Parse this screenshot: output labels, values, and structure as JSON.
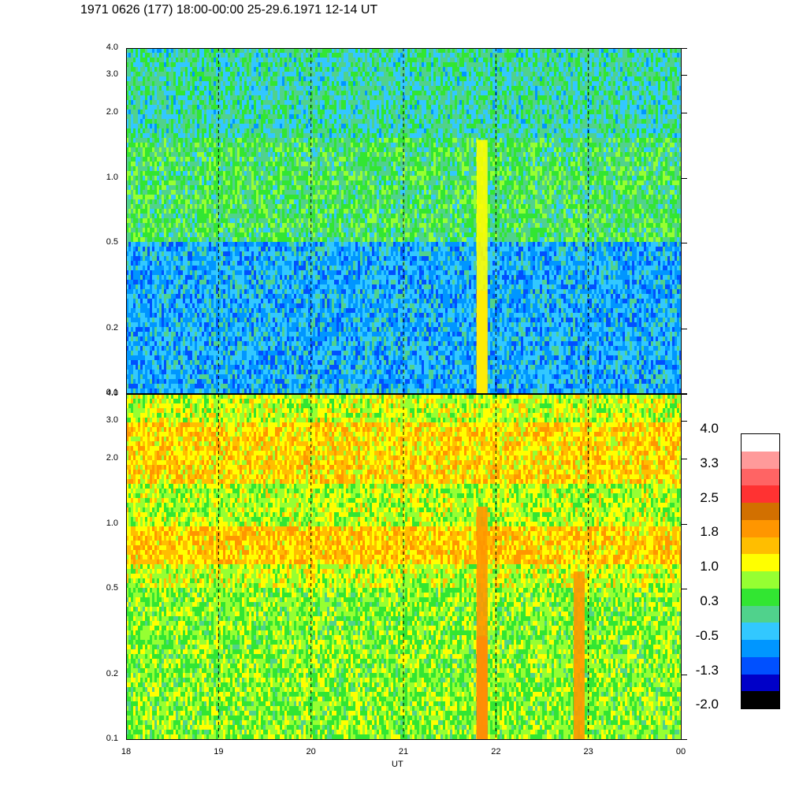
{
  "title": "1971 0626 (177) 18:00-00:00 25-29.6.1971  12-14 UT",
  "chart_data": [
    {
      "type": "heatmap",
      "panel": "upper",
      "x_ticks": [
        "18",
        "19",
        "20",
        "21",
        "22",
        "23",
        "00"
      ],
      "y_ticks": [
        "0.1",
        "0.2",
        "0.5",
        "1.0",
        "2.0",
        "3.0",
        "4.0"
      ],
      "y_tick_values": [
        0.1,
        0.2,
        0.5,
        1.0,
        2.0,
        3.0,
        4.0
      ],
      "ylim": [
        0.1,
        4.0
      ],
      "y_scale": "log",
      "xlim": [
        18,
        24
      ],
      "dashed_vertical_lines_at": [
        19,
        20,
        21,
        22,
        23
      ],
      "bands": [
        {
          "from": 0.1,
          "to": 0.2,
          "level": -0.5
        },
        {
          "from": 0.2,
          "to": 0.5,
          "level": -0.5
        },
        {
          "from": 0.5,
          "to": 0.8,
          "level": 0.3
        },
        {
          "from": 0.8,
          "to": 1.5,
          "level": 0.3
        },
        {
          "from": 1.5,
          "to": 4.0,
          "level": 0.0
        }
      ],
      "events": [
        {
          "x": 21.85,
          "ymax": 0.3,
          "level": 2.5
        },
        {
          "x": 21.85,
          "ymax": 1.5,
          "level": 1.2
        }
      ]
    },
    {
      "type": "heatmap",
      "panel": "lower",
      "x_ticks": [
        "18",
        "19",
        "20",
        "21",
        "22",
        "23",
        "00"
      ],
      "y_ticks": [
        "0.1",
        "0.2",
        "0.5",
        "1.0",
        "2.0",
        "3.0",
        "4.0"
      ],
      "y_tick_values": [
        0.1,
        0.2,
        0.5,
        1.0,
        2.0,
        3.0,
        4.0
      ],
      "ylim": [
        0.1,
        4.0
      ],
      "y_scale": "log",
      "xlim": [
        18,
        24
      ],
      "xlabel": "UT",
      "dashed_vertical_lines_at": [
        19,
        20,
        21,
        22,
        23
      ],
      "bands": [
        {
          "from": 0.1,
          "to": 0.5,
          "level": 0.7
        },
        {
          "from": 0.5,
          "to": 0.65,
          "level": 1.0
        },
        {
          "from": 0.65,
          "to": 0.95,
          "level": 1.5
        },
        {
          "from": 0.95,
          "to": 1.5,
          "level": 0.9
        },
        {
          "from": 1.5,
          "to": 3.0,
          "level": 1.4
        },
        {
          "from": 3.0,
          "to": 4.0,
          "level": 1.0
        }
      ],
      "events": [
        {
          "x": 21.85,
          "ymax": 0.3,
          "level": 2.5
        },
        {
          "x": 21.85,
          "ymax": 1.2,
          "level": 1.9
        },
        {
          "x": 22.9,
          "ymax": 0.6,
          "level": 1.8
        }
      ]
    }
  ],
  "colorbar": {
    "labels": [
      "4.0",
      "3.3",
      "2.5",
      "1.8",
      "1.0",
      "0.3",
      "-0.5",
      "-1.3",
      "-2.0"
    ],
    "colors": [
      "#ffffff",
      "#ff9a9a",
      "#ff6464",
      "#ff3232",
      "#d27000",
      "#ff9600",
      "#ffbe00",
      "#ffff00",
      "#96ff32",
      "#32e632",
      "#50d28c",
      "#32c8ff",
      "#0096ff",
      "#0050ff",
      "#0000c8",
      "#000000"
    ],
    "min": -2.0,
    "max": 4.0
  }
}
